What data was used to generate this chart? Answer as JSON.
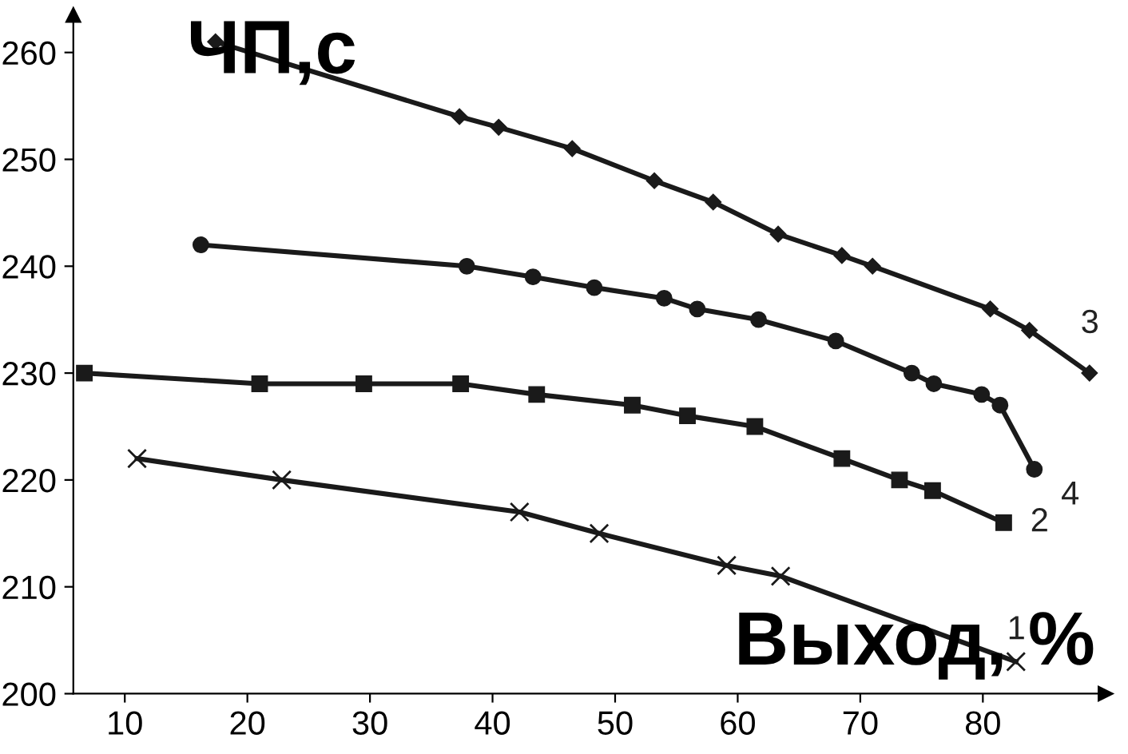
{
  "chart_data": {
    "type": "line",
    "xlabel": "Выход, %",
    "ylabel": "ЧП,с",
    "xlim": [
      5.8,
      90
    ],
    "ylim": [
      200,
      263.5
    ],
    "xticks": [
      10,
      20,
      30,
      40,
      50,
      60,
      70,
      80
    ],
    "yticks": [
      200,
      210,
      220,
      230,
      240,
      250,
      260
    ],
    "grid": false,
    "legend": false,
    "line_style": "solid",
    "series": [
      {
        "name": "1",
        "color": "#1a1a1a",
        "marker": "cross",
        "x": [
          11,
          22.8,
          42.2,
          48.7,
          59.1,
          63.5,
          82.7
        ],
        "values": [
          222,
          220,
          217,
          215,
          212,
          211,
          203
        ]
      },
      {
        "name": "2",
        "color": "#1a1a1a",
        "marker": "square",
        "x": [
          6.7,
          21,
          29.5,
          37.4,
          43.6,
          51.4,
          55.9,
          61.4,
          68.5,
          73.2,
          75.9,
          81.7
        ],
        "values": [
          230,
          229,
          229,
          229,
          228,
          227,
          226,
          225,
          222,
          220,
          219,
          216
        ]
      },
      {
        "name": "3",
        "color": "#1a1a1a",
        "marker": "diamond",
        "x": [
          17.4,
          37.3,
          40.5,
          46.5,
          53.2,
          58,
          63.3,
          68.5,
          71,
          80.6,
          83.8,
          88.7
        ],
        "values": [
          261,
          254,
          253,
          251,
          248,
          246,
          243,
          241,
          240,
          236,
          234,
          230
        ]
      },
      {
        "name": "4",
        "color": "#1a1a1a",
        "marker": "circle",
        "x": [
          16.2,
          37.9,
          43.3,
          48.3,
          54,
          56.7,
          61.7,
          68,
          74.2,
          76,
          79.9,
          81.4,
          84.2
        ],
        "values": [
          242,
          240,
          239,
          238,
          237,
          236,
          235,
          233,
          230,
          229,
          228,
          227,
          221
        ]
      }
    ]
  }
}
